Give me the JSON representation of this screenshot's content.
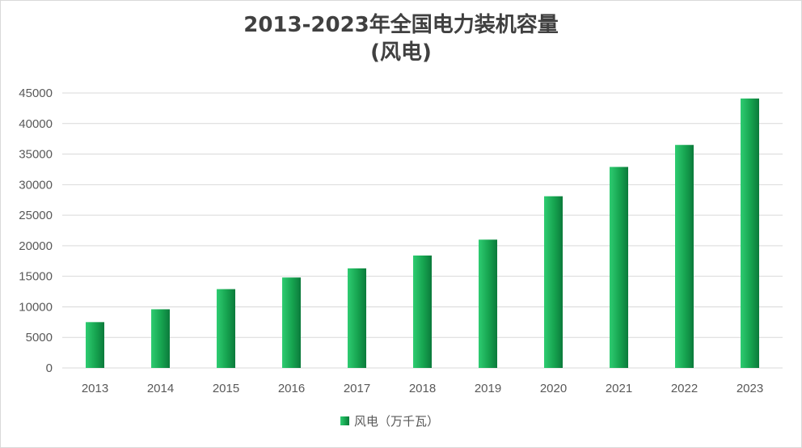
{
  "chart_data": {
    "type": "bar",
    "title_line1": "2013-2023年全国电力装机容量",
    "title_line2": "(风电)",
    "categories": [
      "2013",
      "2014",
      "2015",
      "2016",
      "2017",
      "2018",
      "2019",
      "2020",
      "2021",
      "2022",
      "2023"
    ],
    "series": [
      {
        "name": "风电（万千瓦）",
        "values": [
          7500,
          9600,
          12900,
          14800,
          16300,
          18400,
          21000,
          28100,
          32900,
          36500,
          44100
        ]
      }
    ],
    "ylim": [
      0,
      45000
    ],
    "yticks": [
      "0",
      "5000",
      "10000",
      "15000",
      "20000",
      "25000",
      "30000",
      "35000",
      "40000",
      "45000"
    ],
    "grid": true,
    "legend_position": "bottom",
    "colors": {
      "bar_light": "#2ecc71",
      "bar_dark": "#0b7a3b",
      "grid": "#d9d9d9"
    }
  }
}
